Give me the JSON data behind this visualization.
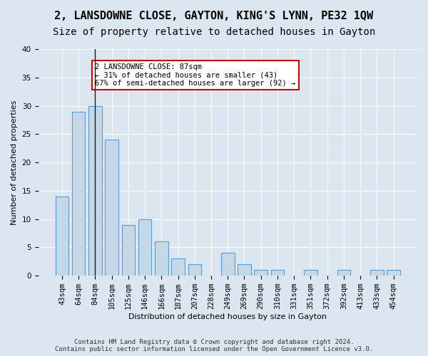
{
  "title": "2, LANSDOWNE CLOSE, GAYTON, KING'S LYNN, PE32 1QW",
  "subtitle": "Size of property relative to detached houses in Gayton",
  "xlabel": "Distribution of detached houses by size in Gayton",
  "ylabel": "Number of detached properties",
  "categories": [
    "43sqm",
    "64sqm",
    "84sqm",
    "105sqm",
    "125sqm",
    "146sqm",
    "166sqm",
    "187sqm",
    "207sqm",
    "228sqm",
    "249sqm",
    "269sqm",
    "290sqm",
    "310sqm",
    "331sqm",
    "351sqm",
    "372sqm",
    "392sqm",
    "413sqm",
    "433sqm",
    "454sqm"
  ],
  "values": [
    14,
    29,
    30,
    24,
    9,
    10,
    6,
    3,
    2,
    0,
    4,
    2,
    1,
    1,
    0,
    1,
    0,
    1,
    0,
    1,
    1
  ],
  "bar_color": "#c5d8e8",
  "bar_edge_color": "#5b9bd5",
  "vline_x": 2,
  "vline_color": "#1a1a1a",
  "annotation_text": "2 LANSDOWNE CLOSE: 87sqm\n← 31% of detached houses are smaller (43)\n67% of semi-detached houses are larger (92) →",
  "annotation_box_color": "#ffffff",
  "annotation_box_edge_color": "#cc0000",
  "ylim": [
    0,
    40
  ],
  "yticks": [
    0,
    5,
    10,
    15,
    20,
    25,
    30,
    35,
    40
  ],
  "bg_color": "#dce6f0",
  "plot_bg_color": "#dce6f0",
  "grid_color": "#ffffff",
  "footer_text": "Contains HM Land Registry data © Crown copyright and database right 2024.\nContains public sector information licensed under the Open Government Licence v3.0.",
  "title_fontsize": 11,
  "subtitle_fontsize": 10,
  "label_fontsize": 8,
  "tick_fontsize": 7.5
}
